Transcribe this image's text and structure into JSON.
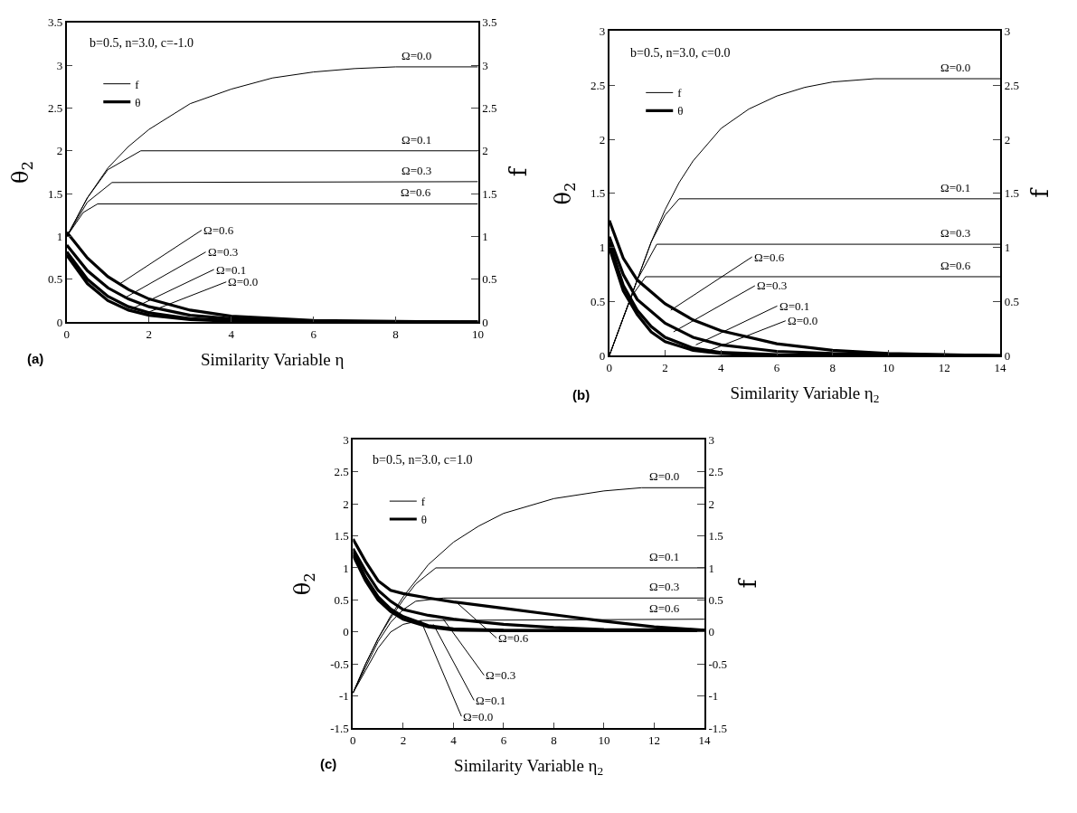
{
  "chart_data": [
    {
      "type": "line",
      "xlabel": "Similarity Variable η",
      "ylabel": "θ$_{2}$",
      "y2label": "f",
      "legend": "top left",
      "xlim": [
        0,
        10
      ],
      "xticks": [
        0,
        2,
        4,
        6,
        8,
        10
      ],
      "ylim": [
        0,
        3.5
      ],
      "yticks": [
        0,
        0.5,
        1,
        1.5,
        2,
        2.5,
        3,
        3.5
      ],
      "y2lim": [
        0,
        3.5
      ],
      "y2ticks": [
        0,
        0.5,
        1,
        1.5,
        2,
        2.5,
        3,
        3.5
      ],
      "series": [
        {
          "name": "f",
          "color": "#000000",
          "axis": "y2",
          "x": [
            0,
            0.5,
            1,
            1.5,
            2,
            3,
            4,
            5,
            6,
            7,
            8,
            10
          ],
          "values": [
            1.0,
            1.45,
            1.8,
            2.05,
            2.25,
            2.55,
            2.72,
            2.85,
            2.92,
            2.96,
            2.98,
            2.98
          ]
        },
        {
          "color": "#000000",
          "axis": "y2",
          "x": [
            0,
            0.5,
            1,
            1.8,
            10
          ],
          "values": [
            1.0,
            1.45,
            1.78,
            2.0,
            2.0
          ]
        },
        {
          "color": "#000000",
          "axis": "y2",
          "x": [
            0,
            0.5,
            1.1,
            10
          ],
          "values": [
            1.0,
            1.4,
            1.63,
            1.64
          ]
        },
        {
          "color": "#000000",
          "axis": "y2",
          "x": [
            0,
            0.4,
            0.75,
            10
          ],
          "values": [
            1.0,
            1.28,
            1.38,
            1.38
          ]
        },
        {
          "name": "θ",
          "color": "#000000",
          "axis": "y",
          "x": [
            0,
            0.5,
            1,
            1.5,
            2,
            3,
            4,
            6,
            10
          ],
          "values": [
            0.78,
            0.45,
            0.25,
            0.14,
            0.08,
            0.03,
            0.01,
            0,
            0
          ]
        },
        {
          "color": "#000000",
          "axis": "y",
          "x": [
            0,
            0.5,
            1,
            1.5,
            2,
            3,
            4,
            6,
            10
          ],
          "values": [
            0.82,
            0.5,
            0.3,
            0.18,
            0.11,
            0.04,
            0.02,
            0.01,
            0
          ]
        },
        {
          "color": "#000000",
          "axis": "y",
          "x": [
            0,
            0.5,
            1,
            1.5,
            2,
            3,
            4,
            6,
            10
          ],
          "values": [
            0.9,
            0.6,
            0.4,
            0.27,
            0.18,
            0.08,
            0.04,
            0.01,
            0
          ]
        },
        {
          "color": "#000000",
          "axis": "y",
          "x": [
            0,
            0.5,
            1,
            1.5,
            2,
            3,
            4,
            6,
            10
          ],
          "values": [
            1.05,
            0.75,
            0.53,
            0.38,
            0.27,
            0.14,
            0.07,
            0.02,
            0
          ]
        }
      ],
      "annotations": [
        "b=0.5, n=3.0, c=-1.0",
        "(a)",
        {
          "text": "Ω=0.0",
          "x": 8.5,
          "y": 2.98
        },
        {
          "text": "Ω=0.1",
          "x": 8.5,
          "y": 2.0
        },
        {
          "text": "Ω=0.3",
          "x": 8.5,
          "y": 1.64
        },
        {
          "text": "Ω=0.6",
          "x": 8.5,
          "y": 1.38
        },
        {
          "text": "Ω=0.6",
          "x": 1.3,
          "y": 0.45
        },
        {
          "text": "Ω=0.3",
          "x": 1.4,
          "y": 0.28
        },
        {
          "text": "Ω=0.1",
          "x": 1.6,
          "y": 0.16
        },
        {
          "text": "Ω=0.0",
          "x": 1.9,
          "y": 0.1
        }
      ]
    },
    {
      "type": "line",
      "xlabel": "Similarity Variable η$_{2}$",
      "ylabel": "θ$_{2}$",
      "y2label": "f",
      "legend": "top left",
      "xlim": [
        0,
        14
      ],
      "xticks": [
        0,
        2,
        4,
        6,
        8,
        10,
        12,
        14
      ],
      "ylim": [
        0,
        3
      ],
      "yticks": [
        0,
        0.5,
        1,
        1.5,
        2,
        2.5,
        3
      ],
      "y2lim": [
        0,
        3
      ],
      "y2ticks": [
        0,
        0.5,
        1,
        1.5,
        2,
        2.5,
        3
      ],
      "series": [
        {
          "name": "f",
          "color": "#000000",
          "axis": "y2",
          "x": [
            0,
            0.5,
            1,
            1.5,
            2,
            2.5,
            3,
            4,
            5,
            6,
            7,
            8,
            9.5,
            14
          ],
          "values": [
            0,
            0.35,
            0.7,
            1.05,
            1.35,
            1.6,
            1.8,
            2.1,
            2.28,
            2.4,
            2.48,
            2.53,
            2.56,
            2.56
          ]
        },
        {
          "color": "#000000",
          "axis": "y2",
          "x": [
            0,
            1,
            1.5,
            2,
            2.5,
            14
          ],
          "values": [
            0,
            0.7,
            1.05,
            1.3,
            1.45,
            1.45
          ]
        },
        {
          "color": "#000000",
          "axis": "y2",
          "x": [
            0,
            0.5,
            1,
            1.7,
            14
          ],
          "values": [
            0,
            0.35,
            0.7,
            1.03,
            1.03
          ]
        },
        {
          "color": "#000000",
          "axis": "y2",
          "x": [
            0,
            0.5,
            0.8,
            1.3,
            14
          ],
          "values": [
            0,
            0.35,
            0.55,
            0.73,
            0.73
          ]
        },
        {
          "name": "θ",
          "color": "#000000",
          "axis": "y",
          "x": [
            0,
            0.5,
            1,
            1.5,
            2,
            3,
            4,
            6,
            14
          ],
          "values": [
            1.0,
            0.6,
            0.38,
            0.22,
            0.13,
            0.05,
            0.02,
            0,
            0
          ]
        },
        {
          "color": "#000000",
          "axis": "y",
          "x": [
            0,
            0.5,
            1,
            1.5,
            2,
            3,
            4,
            6,
            14
          ],
          "values": [
            1.05,
            0.65,
            0.42,
            0.27,
            0.17,
            0.07,
            0.03,
            0.01,
            0
          ]
        },
        {
          "color": "#000000",
          "axis": "y",
          "x": [
            0,
            0.5,
            1,
            2,
            3,
            4,
            6,
            8,
            14
          ],
          "values": [
            1.1,
            0.75,
            0.52,
            0.3,
            0.17,
            0.1,
            0.04,
            0.02,
            0
          ]
        },
        {
          "color": "#000000",
          "axis": "y",
          "x": [
            0,
            0.5,
            1,
            2,
            3,
            4,
            6,
            8,
            10,
            14
          ],
          "values": [
            1.25,
            0.9,
            0.7,
            0.48,
            0.33,
            0.23,
            0.11,
            0.05,
            0.02,
            0
          ]
        }
      ],
      "annotations": [
        "b=0.5, n=3.0, c=0.0",
        "(b)",
        {
          "text": "Ω=0.0",
          "x": 12.4,
          "y": 2.56
        },
        {
          "text": "Ω=0.1",
          "x": 12.4,
          "y": 1.45
        },
        {
          "text": "Ω=0.3",
          "x": 12.4,
          "y": 1.03
        },
        {
          "text": "Ω=0.6",
          "x": 12.4,
          "y": 0.73
        },
        {
          "text": "Ω=0.6",
          "x": 2.2,
          "y": 0.42
        },
        {
          "text": "Ω=0.3",
          "x": 2.3,
          "y": 0.22
        },
        {
          "text": "Ω=0.1",
          "x": 3.1,
          "y": 0.1
        },
        {
          "text": "Ω=0.0",
          "x": 3.4,
          "y": 0.03
        }
      ]
    },
    {
      "type": "line",
      "xlabel": "Similarity Variable η$_{2}$",
      "ylabel": "θ$_{2}$",
      "y2label": "f",
      "legend": "top left",
      "xlim": [
        0,
        14
      ],
      "xticks": [
        0,
        2,
        4,
        6,
        8,
        10,
        12,
        14
      ],
      "ylim": [
        -1.5,
        3
      ],
      "yticks": [
        -1.5,
        -1,
        -0.5,
        0,
        0.5,
        1,
        1.5,
        2,
        2.5,
        3
      ],
      "y2lim": [
        -1.5,
        3
      ],
      "y2ticks": [
        -1.5,
        -1,
        -0.5,
        0,
        0.5,
        1,
        1.5,
        2,
        2.5,
        3
      ],
      "series": [
        {
          "name": "f",
          "color": "#000000",
          "axis": "y2",
          "x": [
            0,
            0.5,
            1,
            1.5,
            2,
            3,
            4,
            5,
            6,
            8,
            10,
            11.5,
            14
          ],
          "values": [
            -0.95,
            -0.5,
            -0.1,
            0.25,
            0.55,
            1.05,
            1.4,
            1.65,
            1.85,
            2.08,
            2.2,
            2.25,
            2.25
          ]
        },
        {
          "color": "#000000",
          "axis": "y2",
          "x": [
            0,
            0.5,
            1,
            1.5,
            2,
            2.5,
            3.3,
            14
          ],
          "values": [
            -0.95,
            -0.5,
            -0.1,
            0.22,
            0.5,
            0.75,
            1.0,
            1.0
          ]
        },
        {
          "color": "#000000",
          "axis": "y2",
          "x": [
            0,
            0.5,
            1,
            1.5,
            2,
            2.5,
            3.6,
            14
          ],
          "values": [
            -0.95,
            -0.55,
            -0.15,
            0.15,
            0.35,
            0.48,
            0.53,
            0.53
          ]
        },
        {
          "color": "#000000",
          "axis": "y2",
          "x": [
            0,
            0.5,
            1,
            1.5,
            2,
            2.7,
            14
          ],
          "values": [
            -0.95,
            -0.6,
            -0.25,
            0.0,
            0.12,
            0.18,
            0.2
          ]
        },
        {
          "name": "θ",
          "color": "#000000",
          "axis": "y",
          "x": [
            0,
            0.5,
            1,
            1.5,
            2,
            3,
            4,
            6,
            14
          ],
          "values": [
            1.2,
            0.8,
            0.5,
            0.32,
            0.2,
            0.08,
            0.03,
            0.02,
            0.02
          ]
        },
        {
          "color": "#000000",
          "axis": "y",
          "x": [
            0,
            0.5,
            1,
            1.5,
            2,
            3,
            4,
            6,
            14
          ],
          "values": [
            1.25,
            0.85,
            0.55,
            0.36,
            0.24,
            0.1,
            0.05,
            0.03,
            0.02
          ]
        },
        {
          "color": "#000000",
          "axis": "y",
          "x": [
            0,
            0.5,
            1,
            1.5,
            2,
            3,
            4,
            6,
            8,
            10,
            14
          ],
          "values": [
            1.3,
            0.95,
            0.65,
            0.48,
            0.35,
            0.26,
            0.2,
            0.12,
            0.07,
            0.04,
            0.03
          ]
        },
        {
          "color": "#000000",
          "axis": "y",
          "x": [
            0,
            0.5,
            1,
            1.5,
            2,
            3,
            4,
            6,
            8,
            10,
            12,
            14
          ],
          "values": [
            1.45,
            1.1,
            0.8,
            0.65,
            0.6,
            0.53,
            0.47,
            0.37,
            0.27,
            0.17,
            0.08,
            0.03
          ]
        }
      ],
      "annotations": [
        "b=0.5, n=3.0, c=1.0",
        "(c)",
        {
          "text": "Ω=0.0",
          "x": 12.4,
          "y": 2.25
        },
        {
          "text": "Ω=0.1",
          "x": 12.4,
          "y": 1.0
        },
        {
          "text": "Ω=0.3",
          "x": 12.4,
          "y": 0.53
        },
        {
          "text": "Ω=0.6",
          "x": 12.4,
          "y": 0.2
        },
        {
          "text": "Ω=0.6",
          "x": 4.1,
          "y": 0.47
        },
        {
          "text": "Ω=0.3",
          "x": 3.6,
          "y": 0.2
        },
        {
          "text": "Ω=0.1",
          "x": 3.2,
          "y": 0.12
        },
        {
          "text": "Ω=0.0",
          "x": 2.7,
          "y": 0.18
        }
      ]
    }
  ]
}
